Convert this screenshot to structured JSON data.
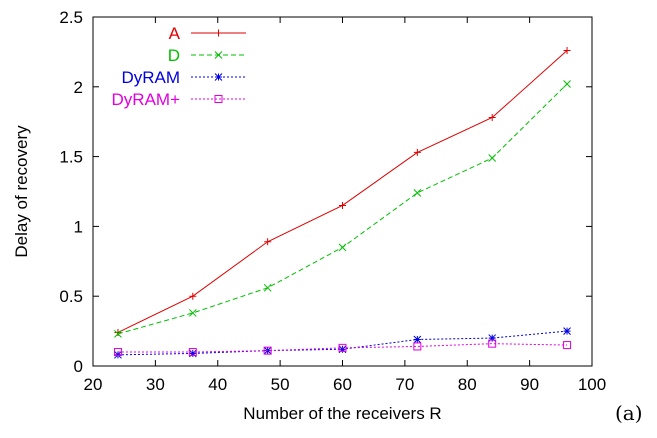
{
  "chart_data": {
    "type": "line",
    "title": "",
    "xlabel": "Number of the receivers R",
    "ylabel": "Delay of recovery",
    "xlim": [
      20,
      100
    ],
    "ylim": [
      0,
      2.5
    ],
    "xticks": [
      20,
      30,
      40,
      50,
      60,
      70,
      80,
      90,
      100
    ],
    "yticks": [
      0,
      0.5,
      1,
      1.5,
      2,
      2.5
    ],
    "xtick_labels": [
      "20",
      "30",
      "40",
      "50",
      "60",
      "70",
      "80",
      "90",
      "100"
    ],
    "ytick_labels": [
      "0",
      "0.5",
      "1",
      "1.5",
      "2",
      "2.5"
    ],
    "grid": false,
    "legend_position": "top-left",
    "x": [
      24,
      36,
      48,
      60,
      72,
      84,
      96
    ],
    "series": [
      {
        "name": "A",
        "color": "#e00000",
        "dash": "solid",
        "marker": "plus",
        "values": [
          0.24,
          0.5,
          0.89,
          1.15,
          1.53,
          1.78,
          2.26
        ]
      },
      {
        "name": "D",
        "color": "#00c000",
        "dash": "dashed",
        "marker": "cross",
        "values": [
          0.23,
          0.38,
          0.56,
          0.85,
          1.24,
          1.49,
          2.02
        ]
      },
      {
        "name": "DyRAM",
        "color": "#0000e0",
        "dash": "dotted",
        "marker": "star",
        "values": [
          0.08,
          0.09,
          0.11,
          0.12,
          0.19,
          0.2,
          0.25
        ]
      },
      {
        "name": "DyRAM+",
        "color": "#e000e0",
        "dash": "dotted",
        "marker": "square",
        "values": [
          0.1,
          0.1,
          0.11,
          0.13,
          0.14,
          0.16,
          0.15
        ]
      }
    ],
    "annotation": "(a)"
  }
}
